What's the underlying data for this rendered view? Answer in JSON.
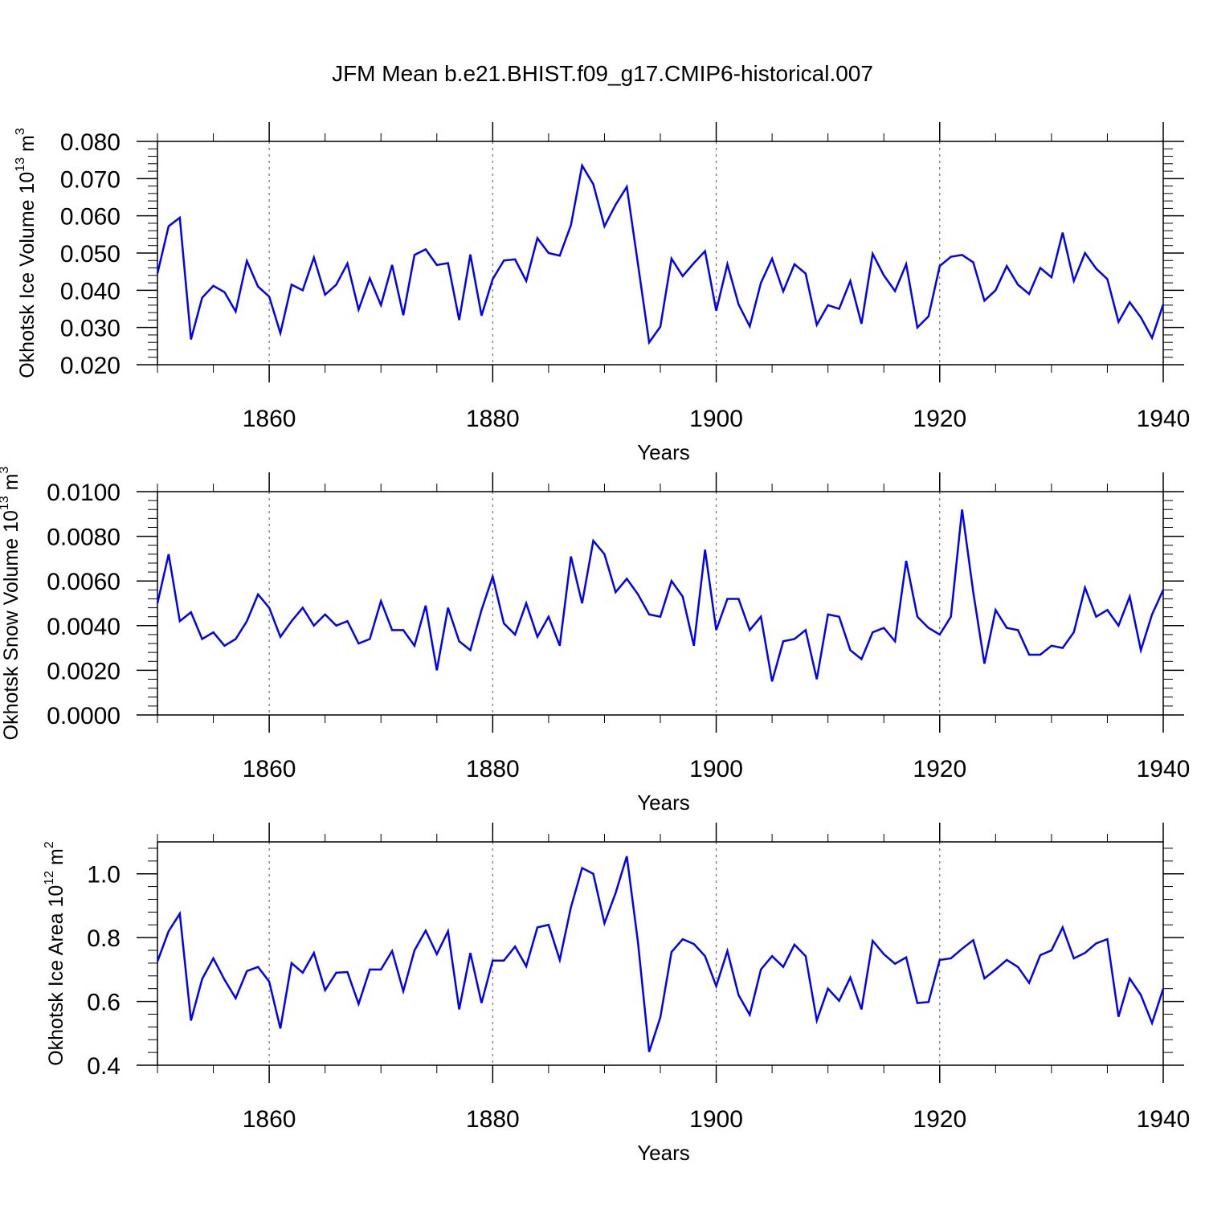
{
  "title": "JFM Mean b.e21.BHIST.f09_g17.CMIP6-historical.007",
  "colors": {
    "series": "#0000ff",
    "axis": "#000000",
    "grid": "#555555"
  },
  "chart_data": [
    {
      "type": "line",
      "title": "JFM Mean b.e21.BHIST.f09_g17.CMIP6-historical.007",
      "xlabel": "Years",
      "ylabel": {
        "text": "Okhotsk Ice Volume 10",
        "exponent": "13",
        "unit": " m",
        "unit_exponent": "3"
      },
      "xlim": [
        1850,
        1940
      ],
      "ylim": [
        0.02,
        0.08
      ],
      "xticks": [
        1860,
        1880,
        1900,
        1920,
        1940
      ],
      "xtick_labels": [
        "1860",
        "1880",
        "1900",
        "1920",
        "1940"
      ],
      "yticks": [
        0.02,
        0.03,
        0.04,
        0.05,
        0.06,
        0.07,
        0.08
      ],
      "ytick_labels": [
        "0.020",
        "0.030",
        "0.040",
        "0.050",
        "0.060",
        "0.070",
        "0.080"
      ],
      "grid": "vertical dashed at major x ticks",
      "x_start": 1850,
      "series": [
        {
          "name": "Okhotsk Ice Volume",
          "values": [
            0.0445,
            0.0572,
            0.0595,
            0.0268,
            0.038,
            0.0412,
            0.0395,
            0.0343,
            0.0479,
            0.041,
            0.0383,
            0.0285,
            0.0415,
            0.04,
            0.0488,
            0.0388,
            0.0415,
            0.0472,
            0.0348,
            0.0432,
            0.036,
            0.0468,
            0.0333,
            0.0495,
            0.051,
            0.0468,
            0.0473,
            0.032,
            0.0496,
            0.0332,
            0.043,
            0.048,
            0.0483,
            0.0425,
            0.054,
            0.05,
            0.0493,
            0.0575,
            0.0735,
            0.0685,
            0.0572,
            0.063,
            0.0678,
            0.047,
            0.026,
            0.0302,
            0.0485,
            0.0438,
            0.0473,
            0.0505,
            0.0345,
            0.047,
            0.0362,
            0.0303,
            0.042,
            0.0485,
            0.0397,
            0.047,
            0.0445,
            0.0307,
            0.036,
            0.035,
            0.0425,
            0.031,
            0.0498,
            0.044,
            0.0398,
            0.047,
            0.03,
            0.033,
            0.0465,
            0.049,
            0.0495,
            0.0475,
            0.0372,
            0.04,
            0.0465,
            0.0415,
            0.039,
            0.046,
            0.0435,
            0.0555,
            0.0425,
            0.05,
            0.0458,
            0.043,
            0.0315,
            0.0368,
            0.0327,
            0.0272,
            0.0362
          ]
        }
      ]
    },
    {
      "type": "line",
      "xlabel": "Years",
      "ylabel": {
        "text": "Okhotsk Snow Volume 10",
        "exponent": "13",
        "unit": " m",
        "unit_exponent": "3"
      },
      "xlim": [
        1850,
        1940
      ],
      "ylim": [
        0.0,
        0.01
      ],
      "xticks": [
        1860,
        1880,
        1900,
        1920,
        1940
      ],
      "xtick_labels": [
        "1860",
        "1880",
        "1900",
        "1920",
        "1940"
      ],
      "yticks": [
        0.0,
        0.002,
        0.004,
        0.006,
        0.008,
        0.01
      ],
      "ytick_labels": [
        "0.0000",
        "0.0020",
        "0.0040",
        "0.0060",
        "0.0080",
        "0.0100"
      ],
      "grid": "vertical dashed at major x ticks",
      "x_start": 1850,
      "series": [
        {
          "name": "Okhotsk Snow Volume",
          "values": [
            0.005,
            0.0072,
            0.0042,
            0.0046,
            0.0034,
            0.0037,
            0.0031,
            0.0034,
            0.0042,
            0.0054,
            0.0048,
            0.0035,
            0.0042,
            0.0048,
            0.004,
            0.0045,
            0.004,
            0.0042,
            0.0032,
            0.0034,
            0.0051,
            0.0038,
            0.0038,
            0.0031,
            0.0049,
            0.002,
            0.0048,
            0.0033,
            0.0029,
            0.0047,
            0.0062,
            0.0041,
            0.0036,
            0.005,
            0.0035,
            0.0044,
            0.0031,
            0.0071,
            0.005,
            0.0078,
            0.0072,
            0.0055,
            0.0061,
            0.0054,
            0.0045,
            0.0044,
            0.006,
            0.0053,
            0.0031,
            0.0074,
            0.0038,
            0.0052,
            0.0052,
            0.0038,
            0.0044,
            0.0015,
            0.0033,
            0.0034,
            0.0038,
            0.0016,
            0.0045,
            0.0044,
            0.0029,
            0.0025,
            0.0037,
            0.0039,
            0.0033,
            0.0069,
            0.0044,
            0.0039,
            0.0036,
            0.0044,
            0.0092,
            0.0055,
            0.0023,
            0.0047,
            0.0039,
            0.0038,
            0.0027,
            0.0027,
            0.0031,
            0.003,
            0.0037,
            0.0057,
            0.0044,
            0.0047,
            0.004,
            0.0053,
            0.0029,
            0.0045,
            0.0056
          ]
        }
      ]
    },
    {
      "type": "line",
      "xlabel": "Years",
      "ylabel": {
        "text": "Okhotsk Ice Area 10",
        "exponent": "12",
        "unit": " m",
        "unit_exponent": "2"
      },
      "xlim": [
        1850,
        1940
      ],
      "ylim": [
        0.4,
        1.1
      ],
      "xticks": [
        1860,
        1880,
        1900,
        1920,
        1940
      ],
      "xtick_labels": [
        "1860",
        "1880",
        "1900",
        "1920",
        "1940"
      ],
      "yticks": [
        0.4,
        0.6,
        0.8,
        1.0
      ],
      "ytick_labels": [
        "0.4",
        "0.6",
        "0.8",
        "1.0"
      ],
      "grid": "vertical dashed at major x ticks",
      "x_start": 1850,
      "series": [
        {
          "name": "Okhotsk Ice Area",
          "values": [
            0.725,
            0.82,
            0.875,
            0.54,
            0.67,
            0.735,
            0.668,
            0.61,
            0.695,
            0.708,
            0.662,
            0.515,
            0.72,
            0.69,
            0.752,
            0.635,
            0.69,
            0.692,
            0.592,
            0.7,
            0.7,
            0.758,
            0.632,
            0.76,
            0.822,
            0.748,
            0.82,
            0.575,
            0.752,
            0.595,
            0.728,
            0.728,
            0.772,
            0.71,
            0.832,
            0.84,
            0.73,
            0.895,
            1.018,
            1.0,
            0.845,
            0.94,
            1.055,
            0.785,
            0.442,
            0.55,
            0.755,
            0.795,
            0.78,
            0.742,
            0.648,
            0.758,
            0.62,
            0.558,
            0.7,
            0.742,
            0.708,
            0.778,
            0.742,
            0.54,
            0.64,
            0.602,
            0.675,
            0.575,
            0.79,
            0.748,
            0.718,
            0.738,
            0.595,
            0.598,
            0.73,
            0.735,
            0.765,
            0.792,
            0.672,
            0.7,
            0.73,
            0.708,
            0.658,
            0.745,
            0.76,
            0.832,
            0.735,
            0.752,
            0.782,
            0.795,
            0.552,
            0.672,
            0.62,
            0.532,
            0.64
          ]
        }
      ]
    }
  ]
}
